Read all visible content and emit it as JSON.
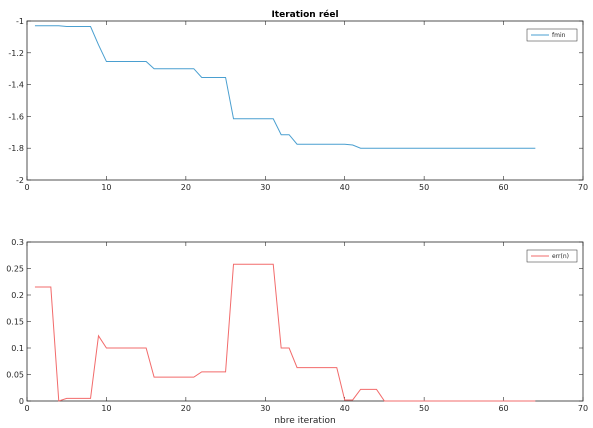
{
  "chart_data": [
    {
      "type": "line",
      "title": "Iteration réel",
      "xlabel": "",
      "ylabel": "",
      "xlim": [
        0,
        70
      ],
      "ylim": [
        -2,
        -1
      ],
      "xticks": [
        0,
        10,
        20,
        30,
        40,
        50,
        60,
        70
      ],
      "yticks": [
        -2,
        -1.8,
        -1.6,
        -1.4,
        -1.2,
        -1
      ],
      "xtick_labels": [
        "0",
        "10",
        "20",
        "30",
        "40",
        "50",
        "60",
        "70"
      ],
      "ytick_labels": [
        "-2",
        "-1.8",
        "-1.6",
        "-1.4",
        "-1.2",
        "-1"
      ],
      "grid": false,
      "legend_position": "top-right",
      "series": [
        {
          "name": "fmin",
          "color": "#4a9fd0",
          "x": [
            1,
            2,
            3,
            4,
            5,
            6,
            7,
            8,
            9,
            10,
            11,
            12,
            13,
            14,
            15,
            16,
            17,
            18,
            19,
            20,
            21,
            22,
            23,
            24,
            25,
            26,
            27,
            28,
            29,
            30,
            31,
            32,
            33,
            34,
            35,
            36,
            37,
            38,
            39,
            40,
            41,
            42,
            43,
            44,
            45,
            46,
            47,
            48,
            49,
            50,
            51,
            52,
            53,
            54,
            55,
            56,
            57,
            58,
            59,
            60,
            61,
            62,
            63,
            64
          ],
          "y": [
            -1.03,
            -1.03,
            -1.03,
            -1.03,
            -1.035,
            -1.035,
            -1.035,
            -1.035,
            -1.15,
            -1.255,
            -1.255,
            -1.255,
            -1.255,
            -1.255,
            -1.255,
            -1.3,
            -1.3,
            -1.3,
            -1.3,
            -1.3,
            -1.3,
            -1.355,
            -1.355,
            -1.355,
            -1.355,
            -1.615,
            -1.615,
            -1.615,
            -1.615,
            -1.615,
            -1.615,
            -1.715,
            -1.715,
            -1.775,
            -1.775,
            -1.775,
            -1.775,
            -1.775,
            -1.775,
            -1.775,
            -1.78,
            -1.8,
            -1.8,
            -1.8,
            -1.8,
            -1.8,
            -1.8,
            -1.8,
            -1.8,
            -1.8,
            -1.8,
            -1.8,
            -1.8,
            -1.8,
            -1.8,
            -1.8,
            -1.8,
            -1.8,
            -1.8,
            -1.8,
            -1.8,
            -1.8,
            -1.8,
            -1.8
          ]
        }
      ]
    },
    {
      "type": "line",
      "title": "",
      "xlabel": "nbre iteration",
      "ylabel": "",
      "xlim": [
        0,
        70
      ],
      "ylim": [
        0,
        0.3
      ],
      "xticks": [
        0,
        10,
        20,
        30,
        40,
        50,
        60,
        70
      ],
      "yticks": [
        0,
        0.05,
        0.1,
        0.15,
        0.2,
        0.25,
        0.3
      ],
      "xtick_labels": [
        "0",
        "10",
        "20",
        "30",
        "40",
        "50",
        "60",
        "70"
      ],
      "ytick_labels": [
        "0",
        "0.05",
        "0.1",
        "0.15",
        "0.2",
        "0.25",
        "0.3"
      ],
      "grid": false,
      "legend_position": "top-right",
      "series": [
        {
          "name": "err(n)",
          "color": "#f26b6b",
          "x": [
            1,
            2,
            3,
            4,
            5,
            6,
            7,
            8,
            9,
            10,
            11,
            12,
            13,
            14,
            15,
            16,
            17,
            18,
            19,
            20,
            21,
            22,
            23,
            24,
            25,
            26,
            27,
            28,
            29,
            30,
            31,
            32,
            33,
            34,
            35,
            36,
            37,
            38,
            39,
            40,
            41,
            42,
            43,
            44,
            45,
            46,
            47,
            48,
            49,
            50,
            51,
            52,
            53,
            54,
            55,
            56,
            57,
            58,
            59,
            60,
            61,
            62,
            63,
            64
          ],
          "y": [
            0.215,
            0.215,
            0.215,
            0.0,
            0.005,
            0.005,
            0.005,
            0.005,
            0.123,
            0.1,
            0.1,
            0.1,
            0.1,
            0.1,
            0.1,
            0.045,
            0.045,
            0.045,
            0.045,
            0.045,
            0.045,
            0.055,
            0.055,
            0.055,
            0.055,
            0.258,
            0.258,
            0.258,
            0.258,
            0.258,
            0.258,
            0.1,
            0.1,
            0.063,
            0.063,
            0.063,
            0.063,
            0.063,
            0.063,
            0.002,
            0.002,
            0.022,
            0.022,
            0.022,
            0.0,
            0.0,
            0.0,
            0.0,
            0.0,
            0.0,
            0.0,
            0.0,
            0.0,
            0.0,
            0.0,
            0.0,
            0.0,
            0.0,
            0.0,
            0.0,
            0.0,
            0.0,
            0.0,
            0.0
          ]
        }
      ]
    }
  ]
}
